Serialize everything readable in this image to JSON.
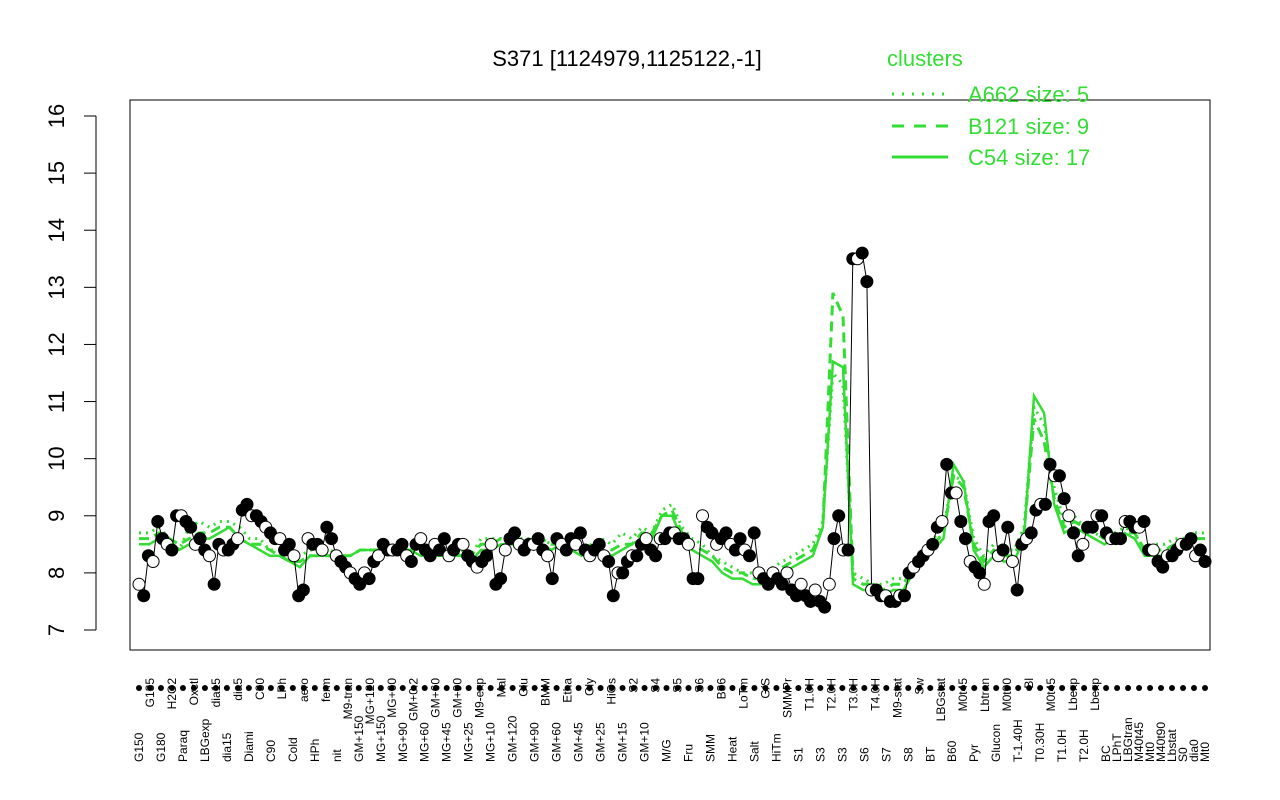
{
  "chart_data": {
    "type": "line",
    "title": "S371 [1124979,1125122,-1]",
    "xlabel": "",
    "ylabel": "",
    "ylim": [
      7,
      16
    ],
    "yticks": [
      7,
      8,
      9,
      10,
      11,
      12,
      13,
      14,
      15,
      16
    ],
    "grid": false,
    "legend": {
      "title": "clusters",
      "placement": "top-right",
      "entries": [
        {
          "label": "A662 size: 5",
          "style": "dotted"
        },
        {
          "label": "B121 size: 9",
          "style": "dashed"
        },
        {
          "label": "C54 size: 17",
          "style": "solid"
        }
      ]
    },
    "x_tick_labels_lower": [
      "G150",
      "G180",
      "Paraq",
      "LBGexp",
      "dia15",
      "Diami",
      "C90",
      "Cold",
      "HPh",
      "nit",
      "GM+150",
      "MG+150",
      "MG+90",
      "MG+60",
      "MG+45",
      "MG+25",
      "MG+10",
      "GM+120",
      "GM+90",
      "GM+60",
      "GM+45",
      "GM+25",
      "GM+15",
      "GM+10",
      "M/G",
      "Fru",
      "SMM",
      "Heat",
      "Salt",
      "HiTm",
      "S1",
      "S3",
      "S3",
      "S6",
      "S7",
      "S8",
      "BT",
      "B60",
      "Pyr",
      "Glucon",
      "T-1.40H",
      "T0.30H",
      "T1.0H",
      "T2.0H",
      "BC",
      "LPhT",
      "LBGtran",
      "M40t45",
      "Mt0",
      "M40t90",
      "Lbstat",
      "S0",
      "dia0",
      "Mt0"
    ],
    "x_tick_labels_upper": [
      "G135",
      "H2O2",
      "Oxctl",
      "dia15",
      "dia5",
      "C30",
      "LPh",
      "aero",
      "ferm",
      "M9-tran",
      "MG+120",
      "MG+60",
      "GM+0.2",
      "GM+60",
      "GM+90",
      "M9-exp",
      "Mal",
      "Glu",
      "BMM",
      "Etha",
      "Gly",
      "HiOs",
      "S2",
      "S4",
      "S5",
      "S6",
      "B36",
      "LoTm",
      "G/S",
      "SMMPr",
      "T1.0H",
      "T2.0H",
      "T3.0H",
      "T4.0H",
      "M9-stat",
      "Sw",
      "LBGstat",
      "M0t45",
      "Lbtran",
      "M0t90",
      "Bl",
      "M0t45",
      "Lbexp",
      "Lbexp"
    ],
    "series": [
      {
        "name": "",
        "style": "points",
        "values": [
          7.8,
          7.6,
          8.3,
          8.2,
          8.9,
          8.6,
          8.5,
          8.4,
          9.0,
          9.0,
          8.9,
          8.8,
          8.5,
          8.6,
          8.4,
          8.3,
          7.8,
          8.5,
          8.4,
          8.4,
          8.5,
          8.6,
          9.1,
          9.2,
          9.0,
          9.0,
          8.9,
          8.8,
          8.7,
          8.6,
          8.6,
          8.4,
          8.5,
          8.3,
          7.6,
          7.7,
          8.6,
          8.5,
          8.5,
          8.4,
          8.8,
          8.6,
          8.3,
          8.2,
          8.1,
          8.0,
          7.9,
          7.8,
          8.0,
          7.9,
          8.2,
          8.3,
          8.5,
          8.4,
          8.4,
          8.4,
          8.5,
          8.3,
          8.2,
          8.5,
          8.6,
          8.4,
          8.3,
          8.5,
          8.4,
          8.6,
          8.3,
          8.4,
          8.5,
          8.5,
          8.3,
          8.2,
          8.1,
          8.2,
          8.3,
          8.5,
          7.8,
          7.9,
          8.4,
          8.6,
          8.7,
          8.5,
          8.4,
          8.5,
          8.5,
          8.6,
          8.4,
          8.3,
          7.9,
          8.6,
          8.5,
          8.4,
          8.6,
          8.5,
          8.7,
          8.4,
          8.3,
          8.4,
          8.5,
          8.3,
          8.2,
          7.6,
          8.0,
          8.0,
          8.2,
          8.3,
          8.3,
          8.5,
          8.6,
          8.4,
          8.3,
          8.6,
          8.6,
          8.7,
          8.7,
          8.6,
          8.6,
          8.5,
          7.9,
          7.9,
          9.0,
          8.8,
          8.7,
          8.5,
          8.6,
          8.7,
          8.5,
          8.4,
          8.6,
          8.4,
          8.3,
          8.7,
          8.0,
          7.9,
          7.8,
          8.0,
          7.9,
          7.8,
          8.0,
          7.7,
          7.6,
          7.8,
          7.6,
          7.5,
          7.7,
          7.5,
          7.4,
          7.8,
          8.6,
          9.0,
          8.4,
          8.4,
          13.5,
          13.5,
          13.6,
          13.1,
          7.7,
          7.7,
          7.6,
          7.6,
          7.5,
          7.5,
          7.6,
          7.6,
          8.0,
          8.1,
          8.2,
          8.3,
          8.4,
          8.5,
          8.8,
          8.9,
          9.9,
          9.4,
          9.4,
          8.9,
          8.6,
          8.2,
          8.1,
          8.0,
          7.8,
          8.9,
          9.0,
          8.3,
          8.4,
          8.8,
          8.2,
          7.7,
          8.5,
          8.6,
          8.7,
          9.1,
          9.2,
          9.2,
          9.9,
          9.7,
          9.7,
          9.3,
          9.0,
          8.7,
          8.3,
          8.5,
          8.8,
          8.8,
          9.0,
          9.0,
          8.7,
          8.6,
          8.6,
          8.6,
          8.9,
          8.9,
          8.8,
          8.8,
          8.9,
          8.4,
          8.4,
          8.2,
          8.1,
          8.3,
          8.3,
          8.4,
          8.5,
          8.5,
          8.6,
          8.3,
          8.4,
          8.2
        ]
      },
      {
        "name": "",
        "style": "dotted",
        "values": [
          8.7,
          8.7,
          8.8,
          8.6,
          8.4,
          8.8,
          8.9,
          8.8,
          8.9,
          8.9,
          8.8,
          8.6,
          8.6,
          8.4,
          8.4,
          8.3,
          8.3,
          8.4,
          8.4,
          8.4,
          8.3,
          8.3,
          8.4,
          8.4,
          8.4,
          8.4,
          8.4,
          8.5,
          8.4,
          8.5,
          8.4,
          8.4,
          8.4,
          8.3,
          8.6,
          8.6,
          8.6,
          8.6,
          8.6,
          8.6,
          8.6,
          8.5,
          8.6,
          8.5,
          8.4,
          8.5,
          8.6,
          8.5,
          8.7,
          8.6,
          8.8,
          8.7,
          9.1,
          9.2,
          8.8,
          8.6,
          8.5,
          8.3,
          8.2,
          8.1,
          8.0,
          8.0,
          7.9,
          8.1,
          8.2,
          8.3,
          8.4,
          8.5,
          8.9,
          11.5,
          11.3,
          8.0,
          7.9,
          7.8,
          7.8,
          7.9,
          7.9,
          8.2,
          8.4,
          8.6,
          8.8,
          9.7,
          9.6,
          8.6,
          8.3,
          8.5,
          8.4,
          8.4,
          8.8,
          10.9,
          10.6,
          9.5,
          8.9,
          9.0,
          8.8,
          8.7,
          8.6,
          8.7,
          8.8,
          8.7,
          8.4,
          8.5,
          8.5,
          8.6,
          8.6,
          8.7,
          8.7
        ]
      },
      {
        "name": "",
        "style": "dashed",
        "values": [
          8.6,
          8.6,
          8.7,
          8.6,
          8.5,
          8.6,
          8.7,
          8.7,
          8.8,
          8.8,
          8.6,
          8.5,
          8.5,
          8.4,
          8.3,
          8.2,
          8.2,
          8.3,
          8.3,
          8.3,
          8.3,
          8.3,
          8.4,
          8.4,
          8.4,
          8.4,
          8.4,
          8.4,
          8.4,
          8.4,
          8.4,
          8.4,
          8.3,
          8.3,
          8.5,
          8.5,
          8.6,
          8.5,
          8.5,
          8.5,
          8.6,
          8.5,
          8.5,
          8.5,
          8.4,
          8.5,
          8.5,
          8.4,
          8.5,
          8.5,
          8.7,
          8.7,
          9.0,
          9.1,
          8.7,
          8.5,
          8.4,
          8.3,
          8.1,
          8.0,
          8.0,
          7.9,
          7.9,
          8.0,
          8.1,
          8.2,
          8.3,
          8.4,
          8.8,
          12.9,
          12.5,
          7.9,
          7.8,
          7.8,
          7.7,
          7.8,
          7.8,
          8.1,
          8.3,
          8.5,
          8.7,
          9.7,
          9.5,
          8.5,
          8.2,
          8.4,
          8.3,
          8.3,
          8.7,
          10.7,
          10.3,
          9.3,
          8.8,
          8.9,
          8.8,
          8.7,
          8.6,
          8.6,
          8.7,
          8.7,
          8.4,
          8.4,
          8.4,
          8.5,
          8.5,
          8.6,
          8.6
        ]
      },
      {
        "name": "",
        "style": "solid",
        "values": [
          8.5,
          8.5,
          8.6,
          8.5,
          8.4,
          8.5,
          8.6,
          8.6,
          8.7,
          8.8,
          8.6,
          8.5,
          8.4,
          8.3,
          8.3,
          8.2,
          8.1,
          8.3,
          8.3,
          8.3,
          8.3,
          8.3,
          8.4,
          8.4,
          8.4,
          8.4,
          8.4,
          8.4,
          8.3,
          8.3,
          8.3,
          8.3,
          8.3,
          8.2,
          8.4,
          8.4,
          8.5,
          8.5,
          8.5,
          8.5,
          8.5,
          8.4,
          8.5,
          8.4,
          8.3,
          8.4,
          8.4,
          8.3,
          8.4,
          8.5,
          8.6,
          8.6,
          9.0,
          9.0,
          8.6,
          8.4,
          8.3,
          8.2,
          8.0,
          7.9,
          7.9,
          7.8,
          7.8,
          7.9,
          8.0,
          8.1,
          8.2,
          8.3,
          8.8,
          11.7,
          11.6,
          7.8,
          7.7,
          7.7,
          7.6,
          7.7,
          7.7,
          8.0,
          8.2,
          8.4,
          8.6,
          9.9,
          9.6,
          8.4,
          8.1,
          8.3,
          8.2,
          8.2,
          8.6,
          11.1,
          10.8,
          9.2,
          8.7,
          8.8,
          8.7,
          8.6,
          8.5,
          8.6,
          8.7,
          8.6,
          8.3,
          8.3,
          8.3,
          8.4,
          8.5,
          8.6,
          8.6
        ]
      }
    ]
  }
}
